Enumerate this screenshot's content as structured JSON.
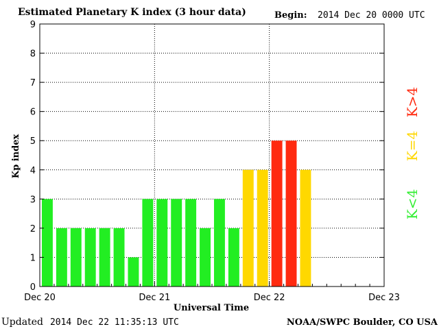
{
  "header": {
    "title": "Estimated Planetary K index (3 hour data)",
    "begin_label": "Begin:",
    "begin_value": "2014 Dec 20 0000 UTC"
  },
  "footer": {
    "updated_label": "Updated",
    "updated_value": "2014 Dec 22 11:35:13 UTC",
    "credit": "NOAA/SWPC Boulder, CO USA"
  },
  "legend": [
    {
      "label": "K<4",
      "color": "#33ee33"
    },
    {
      "label": "K=4",
      "color": "#ffd700"
    },
    {
      "label": "K>4",
      "color": "#ff2a10"
    }
  ],
  "colors": {
    "below4": "#22ee22",
    "eq4": "#ffd800",
    "above4": "#ff2a10"
  },
  "chart_data": {
    "type": "bar",
    "title": "Estimated Planetary K index (3 hour data)",
    "xlabel": "Universal Time",
    "ylabel": "Kp index",
    "ylim": [
      0,
      9
    ],
    "yticks": [
      "0",
      "1",
      "2",
      "3",
      "4",
      "5",
      "6",
      "7",
      "8",
      "9"
    ],
    "xticks": [
      "Dec 20",
      "Dec 21",
      "Dec 22",
      "Dec 23"
    ],
    "grid": true,
    "bin_hours": 3,
    "values": [
      3,
      2,
      2,
      2,
      2,
      2,
      1,
      3,
      3,
      3,
      3,
      2,
      3,
      2,
      4,
      4,
      5,
      5,
      4
    ]
  }
}
